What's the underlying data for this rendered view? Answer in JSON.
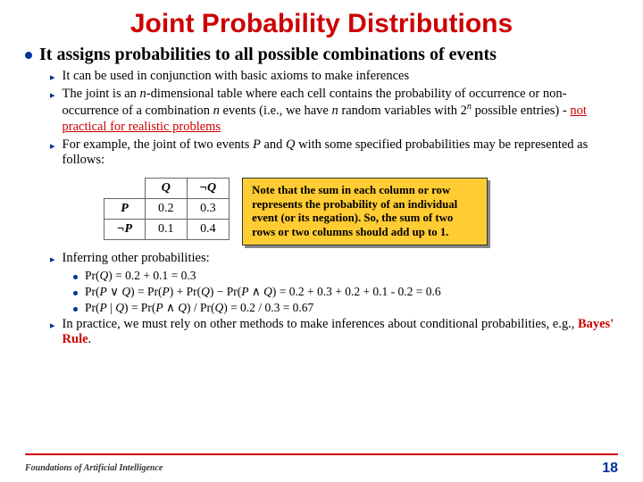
{
  "title": "Joint Probability Distributions",
  "main": "It assigns probabilities to all possible combinations of events",
  "subs": {
    "s1": "It can be used in conjunction with basic axioms to make inferences",
    "s4": "Inferring other probabilities:"
  },
  "table": {
    "hQ": "Q",
    "hnQ": "¬Q",
    "hP": "P",
    "hnP": "¬P",
    "r": {
      "c00": "0.2",
      "c01": "0.3",
      "c10": "0.1",
      "c11": "0.4"
    }
  },
  "note": "Note that the sum in each column or row represents the probability of an individual event (or its negation). So, the sum of two rows or two columns should add up to 1.",
  "probs": {
    "p1": "Pr(Q) = 0.2 + 0.1 = 0.3",
    "p2": "Pr(P ∨ Q) = Pr(P) + Pr(Q) − Pr(P ∧ Q) = 0.2 + 0.3 + 0.2 + 0.1 - 0.2 = 0.6",
    "p3": "Pr(P | Q) = Pr(P ∧ Q) / Pr(Q) = 0.2 / 0.3 = 0.67"
  },
  "footer": "Foundations of Artificial Intelligence",
  "page": "18",
  "colors": {
    "accent": "#cc0000",
    "blue": "#003399",
    "noteBg": "#ffcc33"
  }
}
